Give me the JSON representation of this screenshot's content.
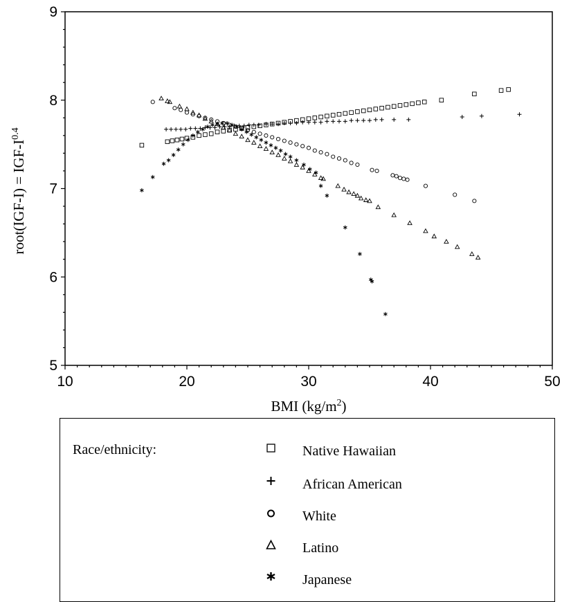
{
  "chart_data": {
    "type": "scatter",
    "xlabel": "BMI (kg/m",
    "xlabel_sup": "2",
    "xlabel_end": ")",
    "ylabel": "root(IGF-I) = IGF-I",
    "ylabel_sup": "0.4",
    "xlim": [
      10,
      50
    ],
    "ylim": [
      5,
      9
    ],
    "x_ticks": [
      "10",
      "20",
      "30",
      "40",
      "50"
    ],
    "y_ticks": [
      "5",
      "6",
      "7",
      "8",
      "9"
    ],
    "legend_title": "Race/ethnicity:",
    "series": [
      {
        "name": "Native Hawaiian",
        "marker": "square",
        "x": [
          16.3,
          18.4,
          18.8,
          19.2,
          19.6,
          20.0,
          20.5,
          21.0,
          21.5,
          22.0,
          22.5,
          23.0,
          23.5,
          24.0,
          24.5,
          25.0,
          25.5,
          26.0,
          26.5,
          27.0,
          27.5,
          28.0,
          28.5,
          29.0,
          29.5,
          30.0,
          30.5,
          31.0,
          31.5,
          32.0,
          32.5,
          33.0,
          33.5,
          34.0,
          34.5,
          35.0,
          35.5,
          36.0,
          36.5,
          37.0,
          37.5,
          38.0,
          38.5,
          39.0,
          39.5,
          40.9,
          43.6,
          45.8,
          46.4
        ],
        "y": [
          7.49,
          7.53,
          7.54,
          7.55,
          7.56,
          7.57,
          7.58,
          7.6,
          7.61,
          7.62,
          7.64,
          7.65,
          7.66,
          7.67,
          7.68,
          7.69,
          7.7,
          7.71,
          7.72,
          7.73,
          7.74,
          7.75,
          7.76,
          7.77,
          7.78,
          7.79,
          7.8,
          7.81,
          7.82,
          7.83,
          7.84,
          7.85,
          7.86,
          7.87,
          7.88,
          7.89,
          7.9,
          7.91,
          7.92,
          7.93,
          7.94,
          7.95,
          7.96,
          7.97,
          7.98,
          8.0,
          8.07,
          8.11,
          8.12
        ]
      },
      {
        "name": "African American",
        "marker": "plus",
        "x": [
          18.3,
          18.7,
          19.1,
          19.5,
          19.9,
          20.3,
          20.7,
          21.1,
          21.5,
          21.9,
          22.3,
          22.7,
          23.1,
          23.5,
          23.9,
          24.3,
          24.7,
          25.1,
          25.5,
          25.9,
          26.5,
          27.0,
          27.5,
          28.0,
          28.5,
          29.0,
          29.5,
          30.0,
          30.5,
          31.0,
          31.5,
          32.0,
          32.5,
          33.0,
          33.5,
          34.0,
          34.5,
          35.0,
          35.5,
          36.0,
          37.0,
          38.2,
          42.6,
          44.2,
          47.3
        ],
        "y": [
          7.67,
          7.67,
          7.67,
          7.67,
          7.67,
          7.68,
          7.68,
          7.68,
          7.69,
          7.69,
          7.69,
          7.7,
          7.7,
          7.7,
          7.71,
          7.71,
          7.71,
          7.72,
          7.72,
          7.72,
          7.73,
          7.73,
          7.73,
          7.74,
          7.74,
          7.74,
          7.75,
          7.75,
          7.75,
          7.75,
          7.76,
          7.76,
          7.76,
          7.76,
          7.77,
          7.77,
          7.77,
          7.77,
          7.78,
          7.78,
          7.78,
          7.78,
          7.81,
          7.82,
          7.84
        ]
      },
      {
        "name": "White",
        "marker": "circle",
        "x": [
          17.2,
          19.0,
          19.5,
          20.0,
          20.5,
          21.0,
          21.5,
          22.0,
          22.5,
          23.0,
          23.5,
          24.0,
          24.5,
          25.0,
          25.5,
          26.0,
          26.5,
          27.0,
          27.5,
          28.0,
          28.5,
          29.0,
          29.5,
          30.0,
          30.5,
          31.0,
          31.5,
          32.0,
          32.5,
          33.0,
          33.5,
          34.0,
          35.2,
          35.6,
          36.9,
          37.2,
          37.5,
          37.8,
          38.1,
          39.6,
          42.0,
          43.6
        ],
        "y": [
          7.98,
          7.91,
          7.89,
          7.86,
          7.84,
          7.82,
          7.8,
          7.78,
          7.76,
          7.74,
          7.72,
          7.7,
          7.68,
          7.66,
          7.64,
          7.62,
          7.6,
          7.58,
          7.56,
          7.54,
          7.52,
          7.5,
          7.48,
          7.46,
          7.43,
          7.41,
          7.39,
          7.36,
          7.34,
          7.32,
          7.29,
          7.27,
          7.21,
          7.2,
          7.15,
          7.14,
          7.12,
          7.11,
          7.1,
          7.03,
          6.93,
          6.86
        ]
      },
      {
        "name": "Latino",
        "marker": "triangle",
        "x": [
          17.9,
          18.4,
          18.6,
          19.4,
          20.0,
          20.5,
          21.0,
          21.5,
          22.0,
          22.5,
          23.0,
          23.5,
          24.0,
          24.5,
          25.0,
          25.5,
          26.0,
          26.5,
          27.0,
          27.5,
          28.0,
          28.5,
          29.0,
          29.5,
          30.0,
          30.5,
          31.0,
          31.2,
          32.4,
          32.9,
          33.3,
          33.7,
          34.0,
          34.3,
          34.7,
          35.0,
          35.7,
          37.0,
          38.3,
          39.6,
          40.3,
          41.3,
          42.2,
          43.4,
          43.9
        ],
        "y": [
          8.02,
          7.99,
          7.98,
          7.93,
          7.9,
          7.86,
          7.83,
          7.79,
          7.76,
          7.73,
          7.69,
          7.66,
          7.62,
          7.59,
          7.55,
          7.52,
          7.48,
          7.45,
          7.41,
          7.38,
          7.34,
          7.31,
          7.27,
          7.24,
          7.2,
          7.16,
          7.12,
          7.11,
          7.03,
          6.99,
          6.96,
          6.94,
          6.92,
          6.89,
          6.87,
          6.86,
          6.79,
          6.7,
          6.61,
          6.52,
          6.46,
          6.4,
          6.34,
          6.26,
          6.22
        ]
      },
      {
        "name": "Japanese",
        "marker": "star",
        "x": [
          16.3,
          17.2,
          18.1,
          18.5,
          18.9,
          19.3,
          19.7,
          20.1,
          20.5,
          20.9,
          21.3,
          21.7,
          22.1,
          22.5,
          22.9,
          23.3,
          23.7,
          24.1,
          24.5,
          24.9,
          25.3,
          25.7,
          26.1,
          26.5,
          26.9,
          27.3,
          27.7,
          28.1,
          28.5,
          29.0,
          29.6,
          30.1,
          30.6,
          31.0,
          31.5,
          33.0,
          34.2,
          35.1,
          35.2,
          36.3
        ],
        "y": [
          6.98,
          7.13,
          7.28,
          7.32,
          7.38,
          7.44,
          7.5,
          7.55,
          7.6,
          7.64,
          7.67,
          7.7,
          7.72,
          7.73,
          7.74,
          7.74,
          7.72,
          7.7,
          7.67,
          7.64,
          7.61,
          7.58,
          7.55,
          7.52,
          7.49,
          7.46,
          7.43,
          7.39,
          7.36,
          7.32,
          7.27,
          7.22,
          7.18,
          7.03,
          6.92,
          6.56,
          6.26,
          5.97,
          5.95,
          5.58
        ]
      }
    ]
  }
}
